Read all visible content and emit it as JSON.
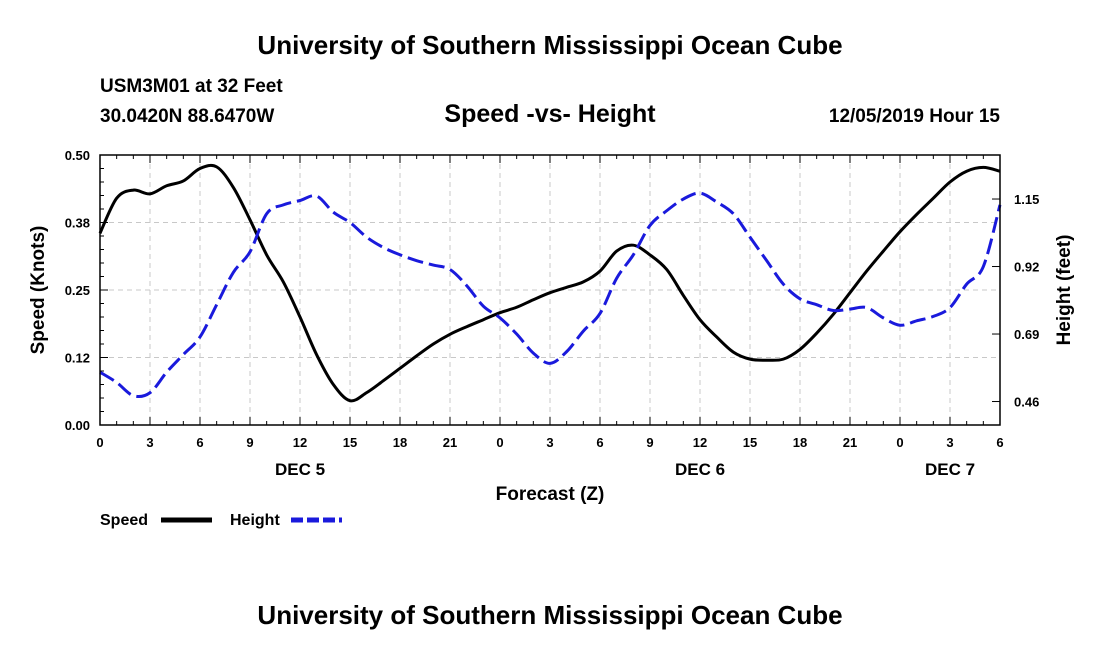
{
  "header": {
    "title": "University of Southern Mississippi Ocean Cube",
    "station": "USM3M01 at 32 Feet",
    "coords": "30.0420N 88.6470W",
    "datetime": "12/05/2019 Hour 15"
  },
  "footer": {
    "title": "University of Southern Mississippi Ocean Cube"
  },
  "colors": {
    "speed": "#000000",
    "height": "#1a1adc",
    "grid": "#c8c8c8"
  },
  "chart_data": {
    "type": "line",
    "title": "Speed -vs- Height",
    "xlabel": "Forecast (Z)",
    "ylabel": "Speed (Knots)",
    "y2label": "Height (feet)",
    "xlim": [
      0,
      54
    ],
    "ylim": [
      0,
      0.5
    ],
    "y2lim": [
      0.38,
      1.3
    ],
    "grid": true,
    "x_ticks": [
      0,
      3,
      6,
      9,
      12,
      15,
      18,
      21,
      24,
      27,
      30,
      33,
      36,
      39,
      42,
      45,
      48,
      51,
      54
    ],
    "x_tick_labels": [
      "0",
      "3",
      "6",
      "9",
      "12",
      "15",
      "18",
      "21",
      "0",
      "3",
      "6",
      "9",
      "12",
      "15",
      "18",
      "21",
      "0",
      "3",
      "6"
    ],
    "y_ticks": [
      0,
      0.125,
      0.25,
      0.375,
      0.5
    ],
    "y_tick_labels": [
      "0.00",
      "0.12",
      "0.25",
      "0.38",
      "0.50"
    ],
    "y2_ticks": [
      0.46,
      0.69,
      0.92,
      1.15
    ],
    "y2_tick_labels": [
      "0.46",
      "0.69",
      "0.92",
      "1.15"
    ],
    "day_labels": [
      {
        "x": 12,
        "label": "DEC 5"
      },
      {
        "x": 36,
        "label": "DEC 6"
      },
      {
        "x": 51,
        "label": "DEC 7"
      }
    ],
    "series": [
      {
        "name": "Speed",
        "axis": "left",
        "style": "solid",
        "x": [
          0,
          1,
          2,
          3,
          4,
          5,
          6,
          7,
          8,
          9,
          10,
          11,
          12,
          13,
          14,
          15,
          16,
          17,
          18,
          19,
          20,
          21,
          22,
          23,
          24,
          25,
          26,
          27,
          28,
          29,
          30,
          31,
          32,
          33,
          34,
          35,
          36,
          37,
          38,
          39,
          40,
          41,
          42,
          43,
          44,
          45,
          46,
          47,
          48,
          49,
          50,
          51,
          52,
          53,
          54
        ],
        "values": [
          0.355,
          0.42,
          0.435,
          0.428,
          0.443,
          0.452,
          0.475,
          0.478,
          0.44,
          0.38,
          0.315,
          0.265,
          0.2,
          0.13,
          0.075,
          0.045,
          0.06,
          0.082,
          0.105,
          0.128,
          0.15,
          0.168,
          0.182,
          0.195,
          0.208,
          0.218,
          0.232,
          0.245,
          0.255,
          0.265,
          0.285,
          0.322,
          0.333,
          0.315,
          0.288,
          0.24,
          0.195,
          0.163,
          0.135,
          0.122,
          0.12,
          0.122,
          0.14,
          0.17,
          0.205,
          0.245,
          0.285,
          0.322,
          0.358,
          0.39,
          0.42,
          0.45,
          0.47,
          0.477,
          0.47
        ]
      },
      {
        "name": "Height",
        "axis": "right",
        "style": "dashed",
        "x": [
          0,
          1,
          2,
          3,
          4,
          5,
          6,
          7,
          8,
          9,
          10,
          11,
          12,
          13,
          14,
          15,
          16,
          17,
          18,
          19,
          20,
          21,
          22,
          23,
          24,
          25,
          26,
          27,
          28,
          29,
          30,
          31,
          32,
          33,
          34,
          35,
          36,
          37,
          38,
          39,
          40,
          41,
          42,
          43,
          44,
          45,
          46,
          47,
          48,
          49,
          50,
          51,
          52,
          53,
          54
        ],
        "values": [
          0.56,
          0.525,
          0.48,
          0.49,
          0.56,
          0.62,
          0.68,
          0.79,
          0.9,
          0.97,
          1.1,
          1.13,
          1.145,
          1.16,
          1.105,
          1.07,
          1.02,
          0.985,
          0.96,
          0.94,
          0.925,
          0.91,
          0.855,
          0.785,
          0.745,
          0.69,
          0.625,
          0.59,
          0.63,
          0.7,
          0.76,
          0.88,
          0.96,
          1.06,
          1.11,
          1.15,
          1.17,
          1.14,
          1.1,
          1.02,
          0.94,
          0.86,
          0.81,
          0.79,
          0.77,
          0.775,
          0.78,
          0.745,
          0.72,
          0.735,
          0.75,
          0.78,
          0.86,
          0.92,
          1.13
        ]
      }
    ],
    "legend": [
      {
        "name": "Speed",
        "style": "solid"
      },
      {
        "name": "Height",
        "style": "dashed"
      }
    ],
    "legend_position": "bottom-left"
  }
}
